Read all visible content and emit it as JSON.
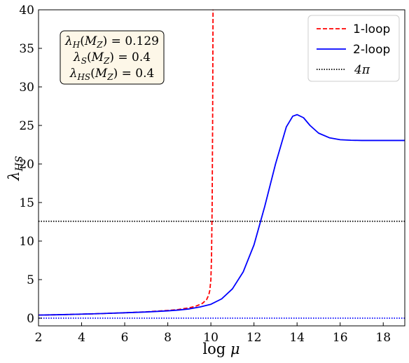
{
  "chart_data": {
    "type": "line",
    "xlabel": "log μ",
    "ylabel": "λHS",
    "xlim": [
      2,
      19
    ],
    "ylim": [
      -1,
      40
    ],
    "xticks": [
      2,
      4,
      6,
      8,
      10,
      12,
      14,
      16,
      18
    ],
    "yticks": [
      0,
      5,
      10,
      15,
      20,
      25,
      30,
      35,
      40
    ],
    "grid": false,
    "legend_position": "top-right",
    "annotation": {
      "lines": [
        "λH(MZ) = 0.129",
        "λS(MZ) = 0.4",
        "λHS(MZ) = 0.4"
      ],
      "position": "top-left"
    },
    "series": [
      {
        "name": "1-loop",
        "color": "#ff0000",
        "style": "dashed",
        "x": [
          2,
          3,
          4,
          5,
          6,
          7,
          8,
          8.5,
          9,
          9.3,
          9.6,
          9.8,
          9.9,
          9.95,
          10.0,
          10.03,
          10.06,
          10.08,
          10.1
        ],
        "y": [
          0.4,
          0.45,
          0.52,
          0.6,
          0.7,
          0.82,
          1.0,
          1.12,
          1.35,
          1.55,
          1.9,
          2.4,
          3.0,
          3.6,
          5.0,
          8.0,
          15.0,
          25.0,
          40.0
        ]
      },
      {
        "name": "2-loop",
        "color": "#0000ff",
        "style": "solid",
        "x": [
          2,
          3,
          4,
          5,
          6,
          7,
          8,
          8.5,
          9,
          9.5,
          10,
          10.5,
          11,
          11.5,
          12,
          12.5,
          13,
          13.5,
          13.8,
          14,
          14.3,
          14.6,
          15,
          15.5,
          16,
          16.5,
          17,
          18,
          19
        ],
        "y": [
          0.4,
          0.45,
          0.52,
          0.6,
          0.7,
          0.8,
          0.95,
          1.05,
          1.2,
          1.45,
          1.8,
          2.5,
          3.8,
          6.0,
          9.5,
          14.5,
          20.0,
          24.8,
          26.2,
          26.4,
          26.0,
          25.0,
          24.0,
          23.4,
          23.15,
          23.08,
          23.05,
          23.05,
          23.05
        ]
      },
      {
        "name": "4π",
        "color": "#000000",
        "style": "dotted",
        "x": [
          2,
          19
        ],
        "y": [
          12.566,
          12.566
        ]
      },
      {
        "name": "",
        "color": "#0000ff",
        "style": "dotted",
        "x": [
          2,
          19
        ],
        "y": [
          0,
          0
        ]
      }
    ]
  }
}
